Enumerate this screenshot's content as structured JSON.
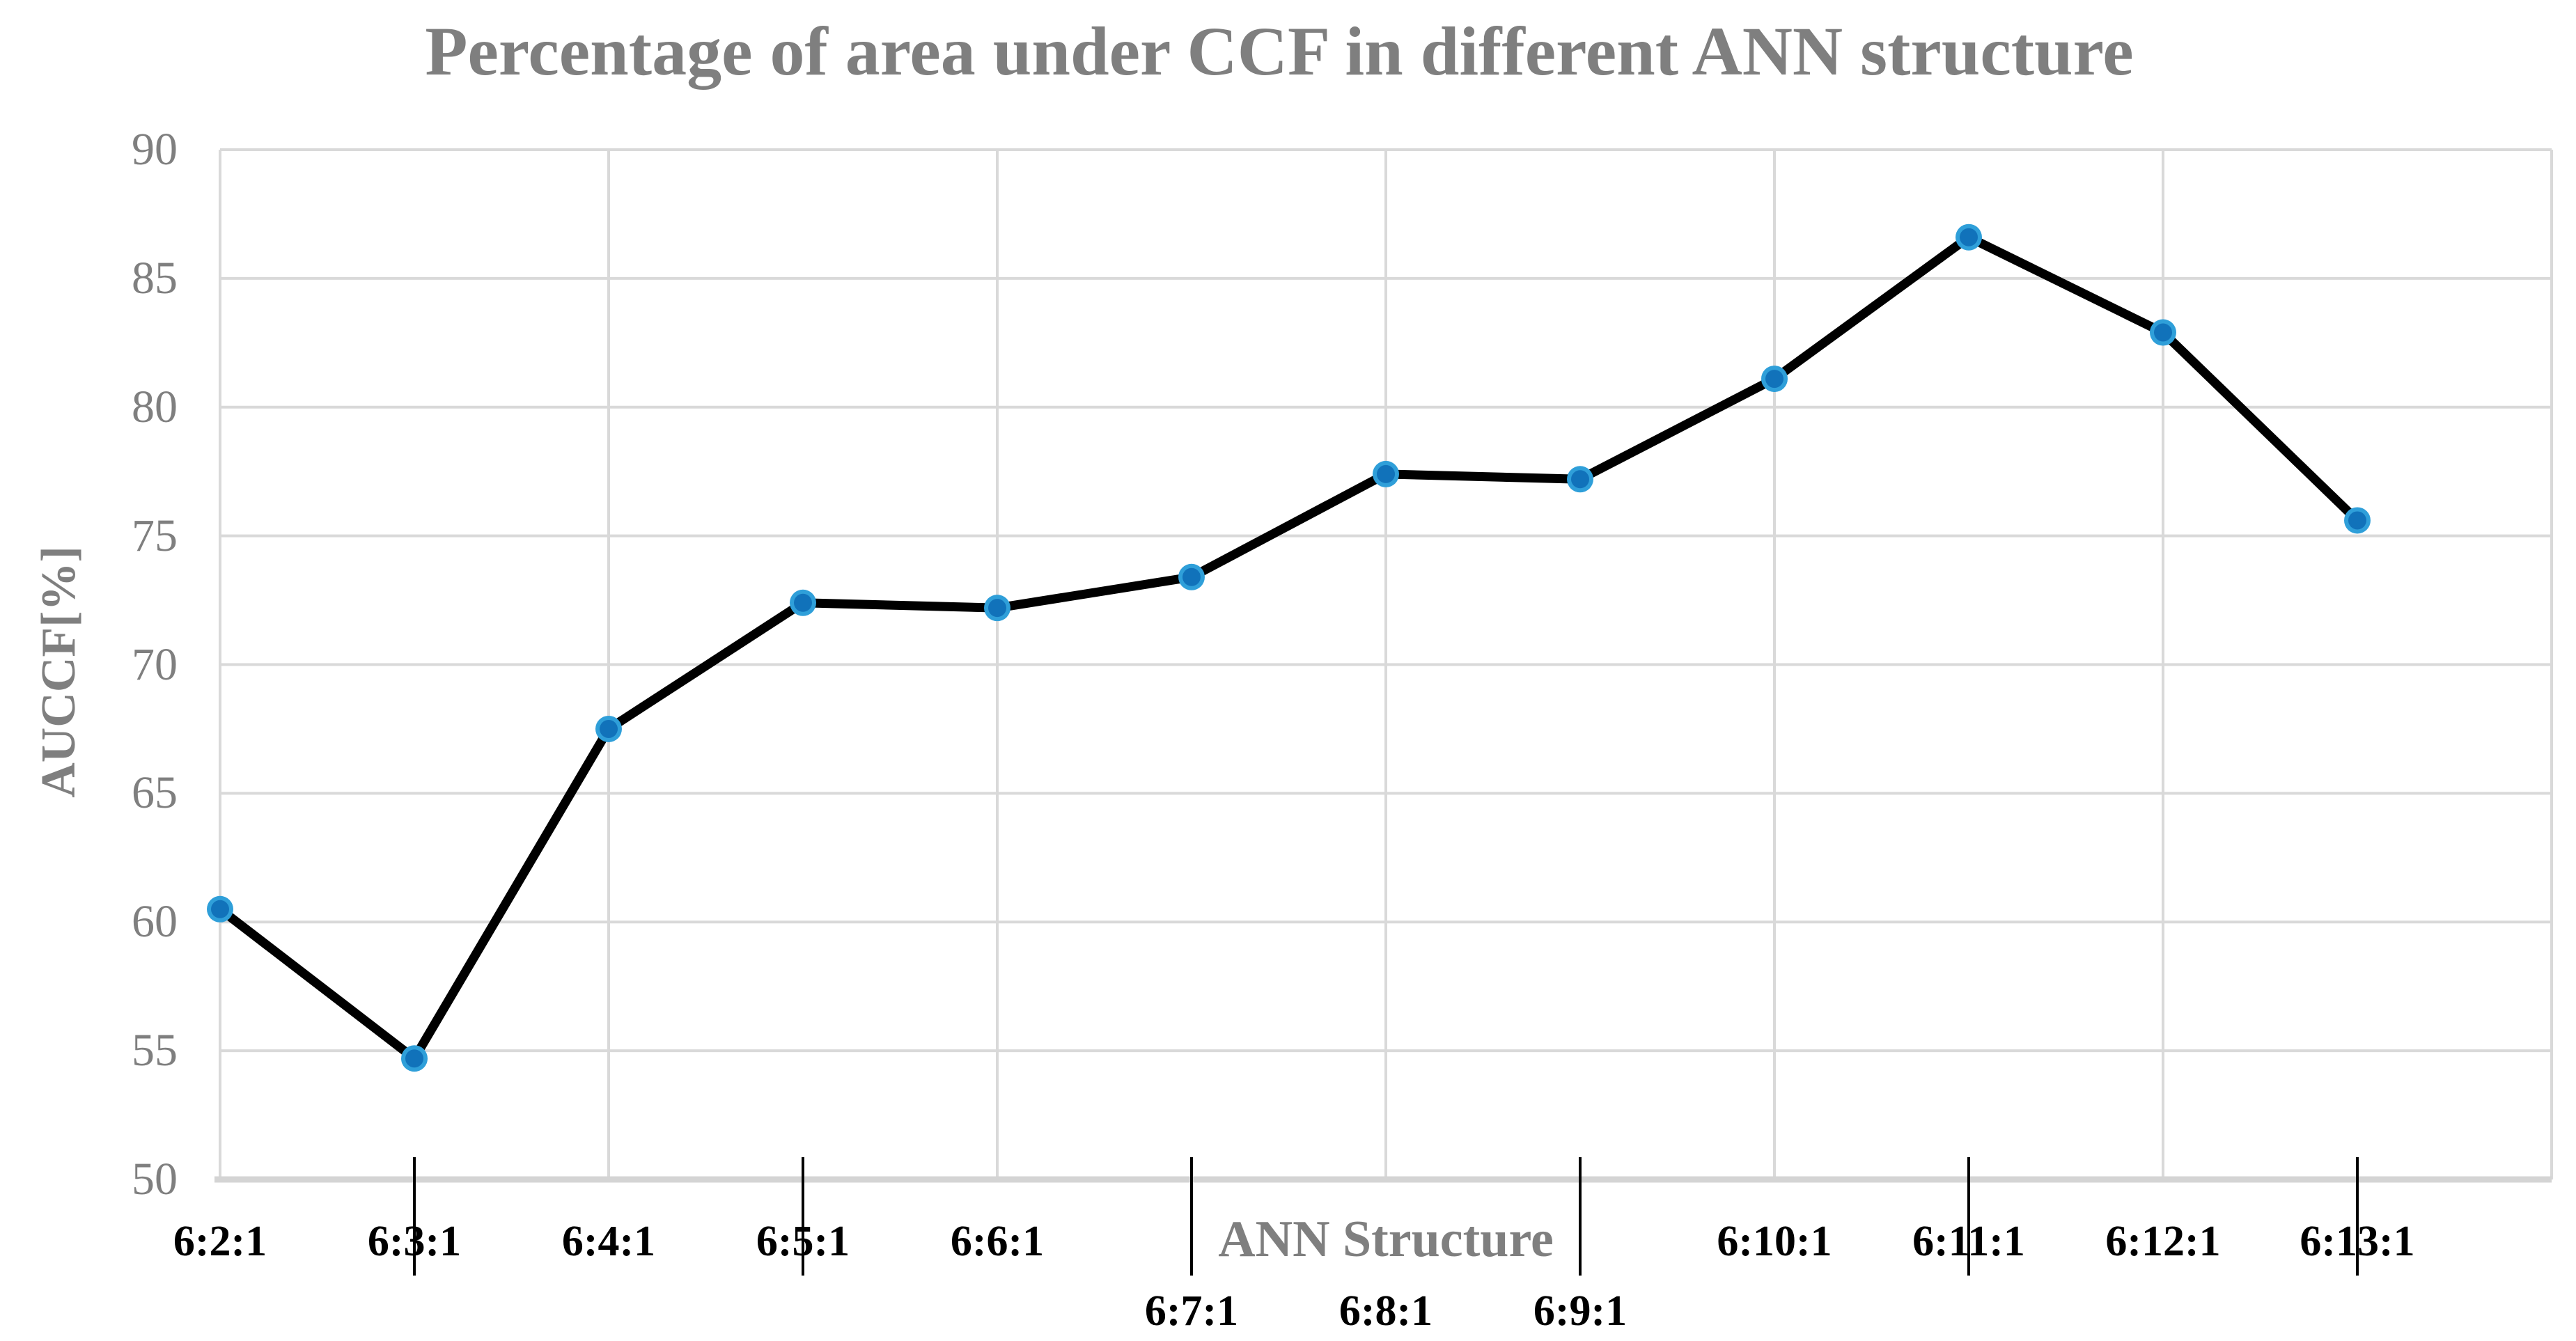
{
  "page": {
    "background": "#FFFFFF"
  },
  "chart_data": {
    "type": "line",
    "title": "Percentage of area under CCF in different ANN structure",
    "xlabel": "ANN Structure",
    "ylabel": "AUCCF[%]",
    "categories": [
      "6:2:1",
      "6:3:1",
      "6:4:1",
      "6:5:1",
      "6:6:1",
      "6:7:1",
      "6:8:1",
      "6:9:1",
      "6:10:1",
      "6:11:1",
      "6:12:1",
      "6:13:1"
    ],
    "values": [
      60.5,
      54.7,
      67.5,
      72.4,
      72.2,
      73.4,
      77.4,
      77.2,
      81.1,
      86.6,
      82.9,
      75.6
    ],
    "ylim": [
      50,
      90
    ],
    "yticks": [
      50,
      55,
      60,
      65,
      70,
      75,
      80,
      85,
      90
    ],
    "grid": "on",
    "legend": "none",
    "x_labels_second_row": [
      "6:7:1",
      "6:8:1",
      "6:9:1"
    ],
    "style": {
      "line_color": "#000000",
      "marker_fill": "#1172BA",
      "marker_ring": "#2F9FD9",
      "gridline_color": "#D9D9D9",
      "axis_line_color": "#D4D4D4",
      "tick_color": "#000000",
      "title_color": "#7F7F7F",
      "axis_title_color": "#7F7F7F",
      "y_tick_label_color": "#7F7F7F",
      "x_tick_label_color": "#000000"
    }
  }
}
